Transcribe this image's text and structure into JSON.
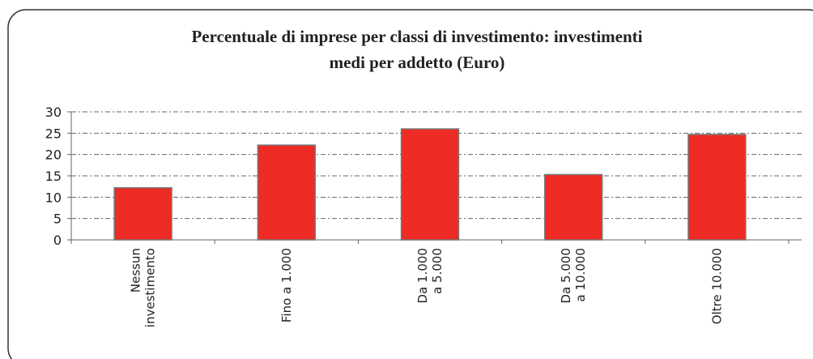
{
  "chart_data": {
    "type": "bar",
    "title": "Percentuale di imprese per classi di investimento: investimenti\nmedi per addetto (Euro)",
    "categories": [
      "Nessun\ninvestimento",
      "Fino a 1.000",
      "Da 1.000\na 5.000",
      "Da 5.000\na 10.000",
      "Oltre 10.000"
    ],
    "values": [
      12.2,
      22.2,
      26,
      15.3,
      24.7
    ],
    "color": "#ee2b24",
    "ylim": [
      0,
      30
    ],
    "yticks": [
      0,
      5,
      10,
      15,
      20,
      25,
      30
    ],
    "grid": true
  }
}
